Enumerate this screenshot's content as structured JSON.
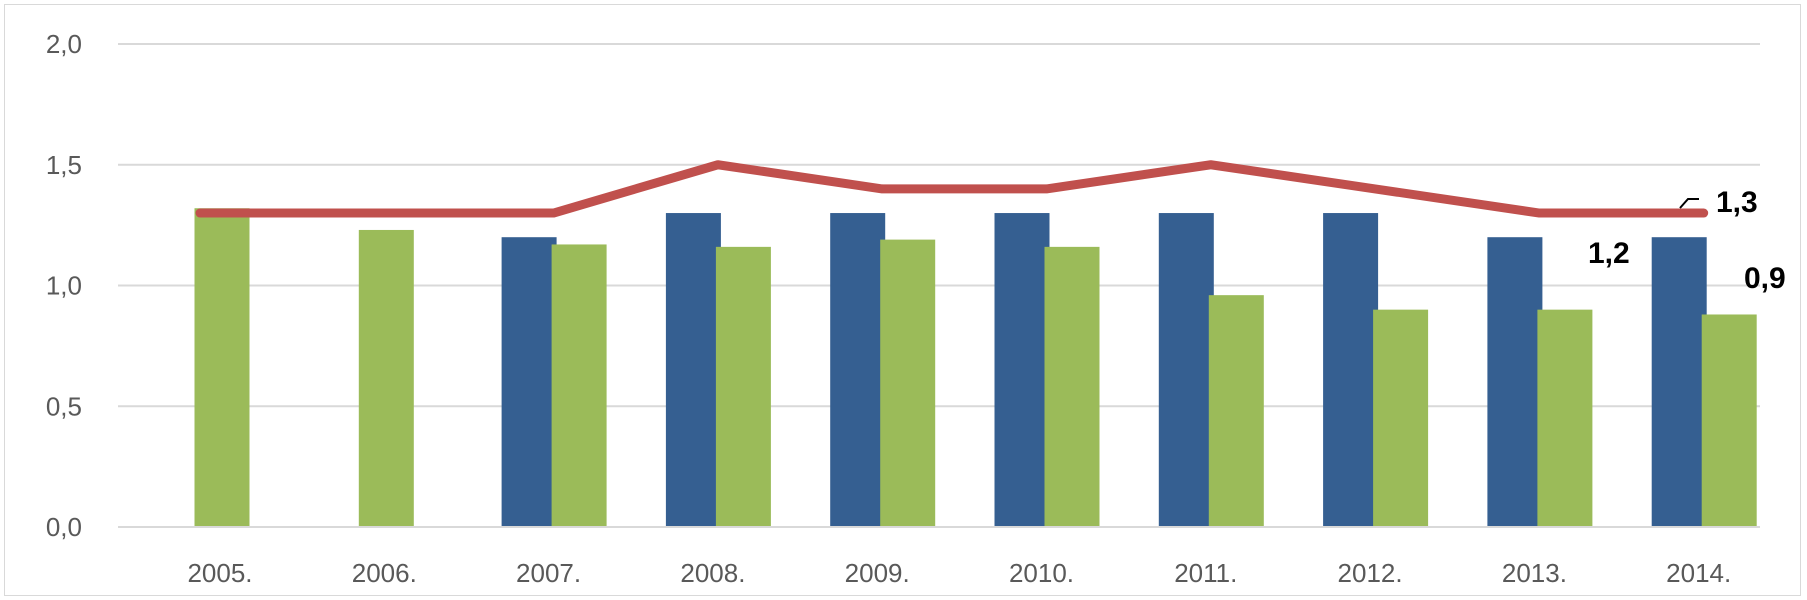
{
  "chart_data": {
    "type": "bar",
    "categories": [
      "2005.",
      "2006.",
      "2007.",
      "2008.",
      "2009.",
      "2010.",
      "2011.",
      "2012.",
      "2013.",
      "2014."
    ],
    "series": [
      {
        "kind": "bar",
        "color": "#355f91",
        "values": [
          null,
          null,
          1.2,
          1.3,
          1.3,
          1.3,
          1.3,
          1.3,
          1.2,
          1.2
        ]
      },
      {
        "kind": "bar",
        "color": "#9bbb59",
        "values": [
          1.32,
          1.23,
          1.17,
          1.16,
          1.19,
          1.16,
          0.96,
          0.9,
          0.9,
          0.88
        ]
      },
      {
        "kind": "line",
        "color": "#c0504d",
        "values": [
          1.3,
          1.3,
          1.3,
          1.5,
          1.4,
          1.4,
          1.5,
          1.4,
          1.3,
          1.3
        ]
      }
    ],
    "ylim": [
      0,
      2.0
    ],
    "yticks": [
      {
        "value": 0,
        "label": "0,0"
      },
      {
        "value": 0.5,
        "label": "0,5"
      },
      {
        "value": 1.0,
        "label": "1,0"
      },
      {
        "value": 1.5,
        "label": "1,5"
      },
      {
        "value": 2.0,
        "label": "2,0"
      }
    ],
    "data_labels": [
      {
        "series": 0,
        "index": 9,
        "text": "1,2"
      },
      {
        "series": 1,
        "index": 9,
        "text": "0,9"
      },
      {
        "series": 2,
        "index": 9,
        "text": "1,3"
      }
    ],
    "grid": true,
    "legend": "none",
    "title": "",
    "xlabel": "",
    "ylabel": ""
  }
}
